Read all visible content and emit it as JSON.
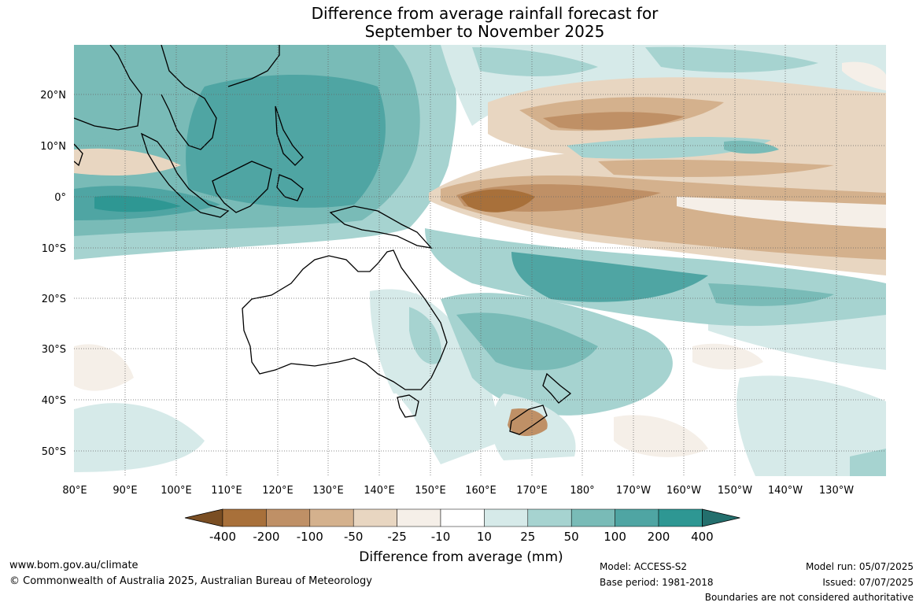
{
  "title": {
    "line1": "Difference from average rainfall forecast for",
    "line2": "September to November 2025"
  },
  "map": {
    "lat_labels": [
      "20°N",
      "10°N",
      "0°",
      "10°S",
      "20°S",
      "30°S",
      "40°S",
      "50°S"
    ],
    "lon_labels": [
      "80°E",
      "90°E",
      "100°E",
      "110°E",
      "120°E",
      "130°E",
      "140°E",
      "150°E",
      "160°E",
      "170°E",
      "180°",
      "170°W",
      "160°W",
      "150°W",
      "140°W",
      "130°W"
    ]
  },
  "legend": {
    "ticks": [
      "-400",
      "-200",
      "-100",
      "-50",
      "-25",
      "-10",
      "10",
      "25",
      "50",
      "100",
      "200",
      "400"
    ],
    "colors": [
      "#7a4e23",
      "#a8703a",
      "#bf9066",
      "#d4b18d",
      "#e8d6c1",
      "#f5efe8",
      "#ffffff",
      "#d6eae9",
      "#a6d3d0",
      "#79bbb7",
      "#4fa5a3",
      "#2e9793",
      "#236f6d"
    ],
    "label": "Difference from average (mm)"
  },
  "footer": {
    "url": "www.bom.gov.au/climate",
    "copyright": "© Commonwealth of Australia 2025, Australian Bureau of Meteorology",
    "model": "Model: ACCESS-S2",
    "base_period": "Base period: 1981-2018",
    "model_run": "Model run: 05/07/2025",
    "issued": "Issued: 07/07/2025",
    "disclaimer": "Boundaries are not considered authoritative"
  }
}
